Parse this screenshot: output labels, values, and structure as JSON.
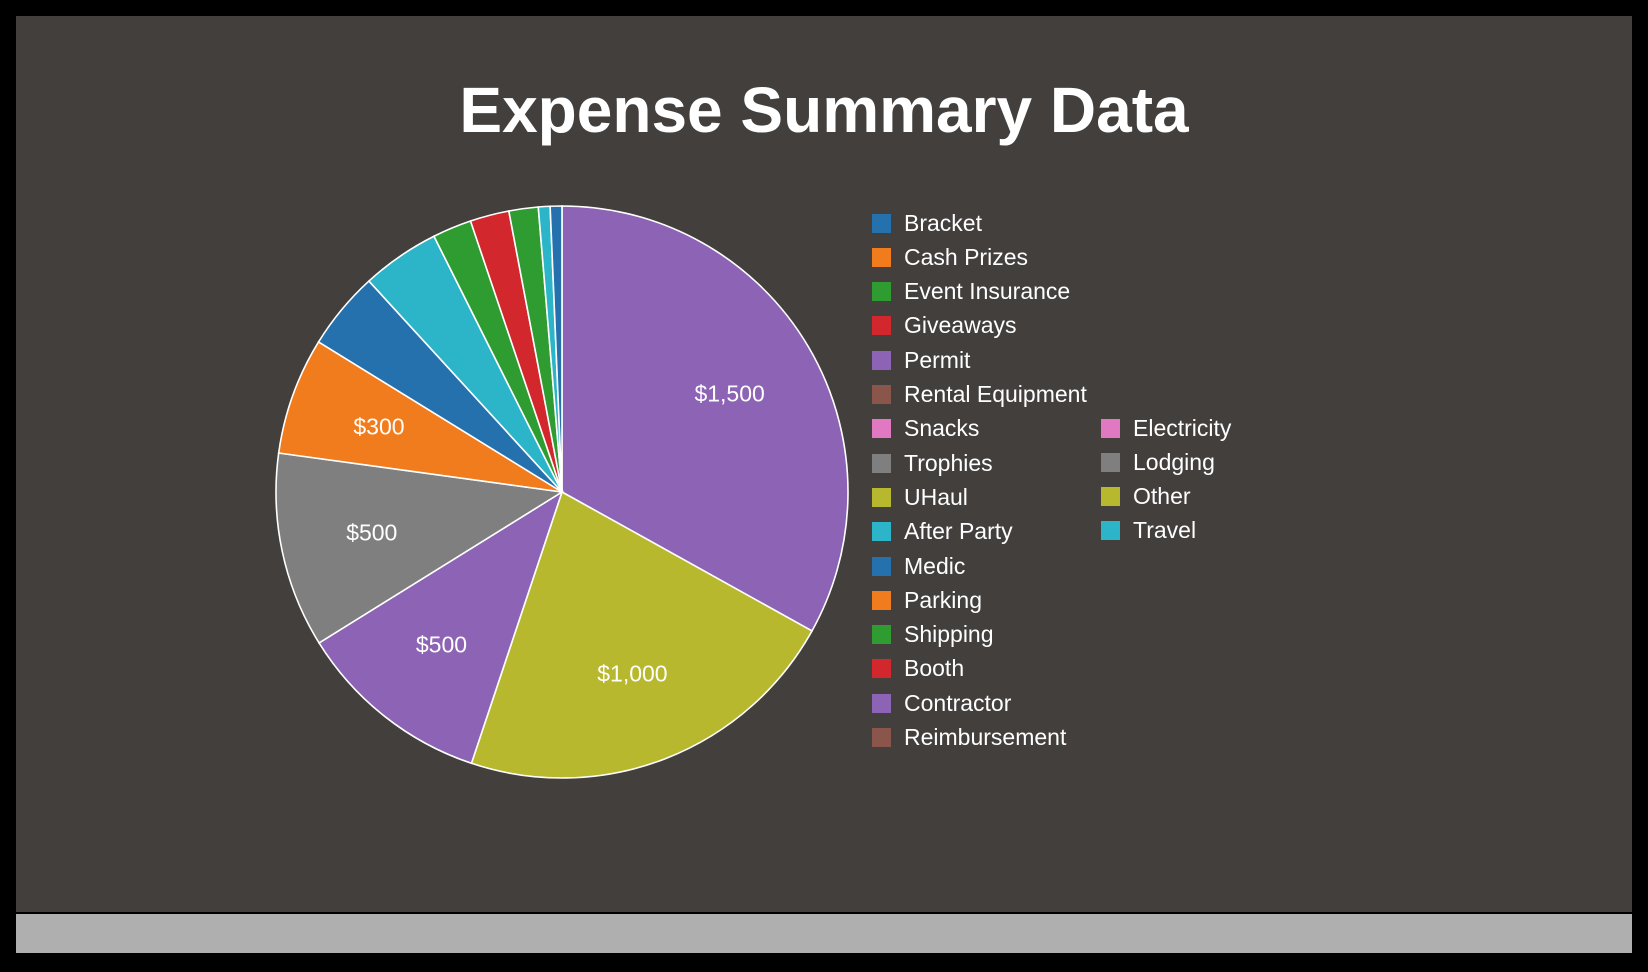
{
  "chart_data": {
    "type": "pie",
    "title": "Expense Summary Data",
    "slices": [
      {
        "name": "Permit",
        "value": 1500,
        "label": "$1,500",
        "color": "#8d63b5"
      },
      {
        "name": "UHaul",
        "value": 1000,
        "label": "$1,000",
        "color": "#b8b82e"
      },
      {
        "name": "Contractor",
        "value": 500,
        "label": "$500",
        "color": "#8d63b5"
      },
      {
        "name": "Trophies",
        "value": 500,
        "label": "$500",
        "color": "#7f7f7f"
      },
      {
        "name": "Cash Prizes",
        "value": 300,
        "label": "$300",
        "color": "#f17c1e"
      },
      {
        "name": "Bracket",
        "value": 200,
        "label": "",
        "color": "#2471ad"
      },
      {
        "name": "After Party",
        "value": 200,
        "label": "",
        "color": "#2cb5c8"
      },
      {
        "name": "Event Insurance",
        "value": 100,
        "label": "",
        "color": "#2f9c32"
      },
      {
        "name": "Giveaways",
        "value": 100,
        "label": "",
        "color": "#d2272c"
      },
      {
        "name": "Shipping",
        "value": 75,
        "label": "",
        "color": "#2f9c32"
      },
      {
        "name": "Travel",
        "value": 30,
        "label": "",
        "color": "#2cb5c8"
      },
      {
        "name": "Medic",
        "value": 30,
        "label": "",
        "color": "#2471ad"
      }
    ],
    "legend": {
      "placement": "right",
      "columns": [
        [
          {
            "label": "Bracket",
            "color": "#2471ad"
          },
          {
            "label": "Cash Prizes",
            "color": "#f17c1e"
          },
          {
            "label": "Event Insurance",
            "color": "#2f9c32"
          },
          {
            "label": "Giveaways",
            "color": "#d2272c"
          },
          {
            "label": "Permit",
            "color": "#8d63b5"
          },
          {
            "label": "Rental Equipment",
            "color": "#8a564b"
          },
          {
            "label": "Snacks",
            "color": "#e178c2"
          },
          {
            "label": "Trophies",
            "color": "#7f7f7f"
          },
          {
            "label": "UHaul",
            "color": "#b8b82e"
          },
          {
            "label": "After Party",
            "color": "#2cb5c8"
          },
          {
            "label": "Medic",
            "color": "#2471ad"
          },
          {
            "label": "Parking",
            "color": "#f17c1e"
          },
          {
            "label": "Shipping",
            "color": "#2f9c32"
          },
          {
            "label": "Booth",
            "color": "#d2272c"
          },
          {
            "label": "Contractor",
            "color": "#8d63b5"
          },
          {
            "label": "Reimbursement",
            "color": "#8a564b"
          }
        ],
        [
          {
            "label": "Electricity",
            "color": "#e178c2"
          },
          {
            "label": "Lodging",
            "color": "#7f7f7f"
          },
          {
            "label": "Other",
            "color": "#b8b82e"
          },
          {
            "label": "Travel",
            "color": "#2cb5c8"
          }
        ]
      ]
    }
  },
  "colors": {
    "background": "#423f3d",
    "frame": "#000000",
    "bottom_bar": "#afafaf",
    "slice_border": "#ffffff",
    "text": "#ffffff"
  }
}
